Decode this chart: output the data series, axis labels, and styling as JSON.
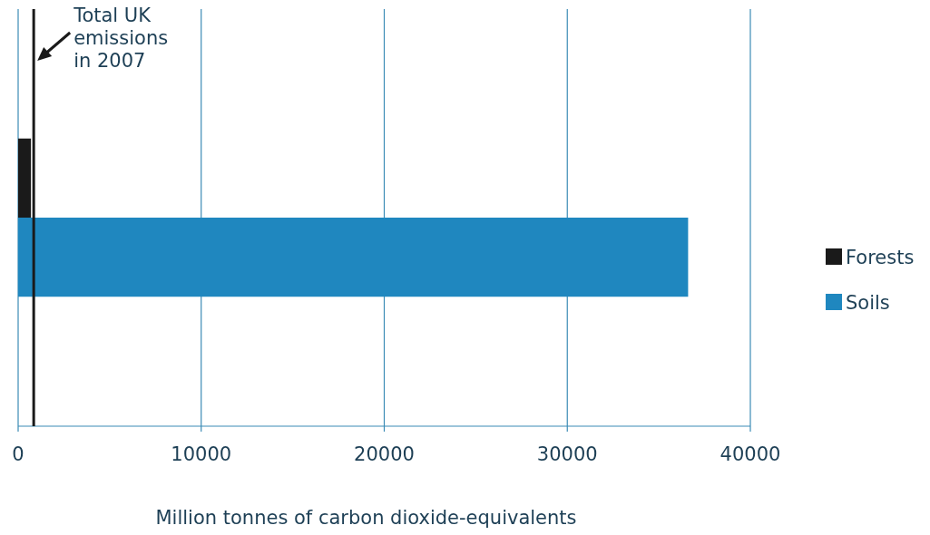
{
  "chart_data": {
    "type": "bar",
    "orientation": "horizontal",
    "categories": [
      null
    ],
    "series": [
      {
        "name": "Forests",
        "color": "#1a1a1a",
        "values": [
          700
        ]
      },
      {
        "name": "Soils",
        "color": "#1f87bf",
        "values": [
          36600
        ]
      }
    ],
    "xlim": [
      0,
      40000
    ],
    "xticks": [
      0,
      10000,
      20000,
      30000,
      40000
    ],
    "xlabel": "Million tonnes of carbon dioxide-equivalents",
    "grid": "x",
    "legend": "right",
    "ref_lines": [
      {
        "axis": "x",
        "value": 850,
        "label": "Total UK emissions in 2007",
        "color": "#1a1a1a"
      }
    ]
  }
}
